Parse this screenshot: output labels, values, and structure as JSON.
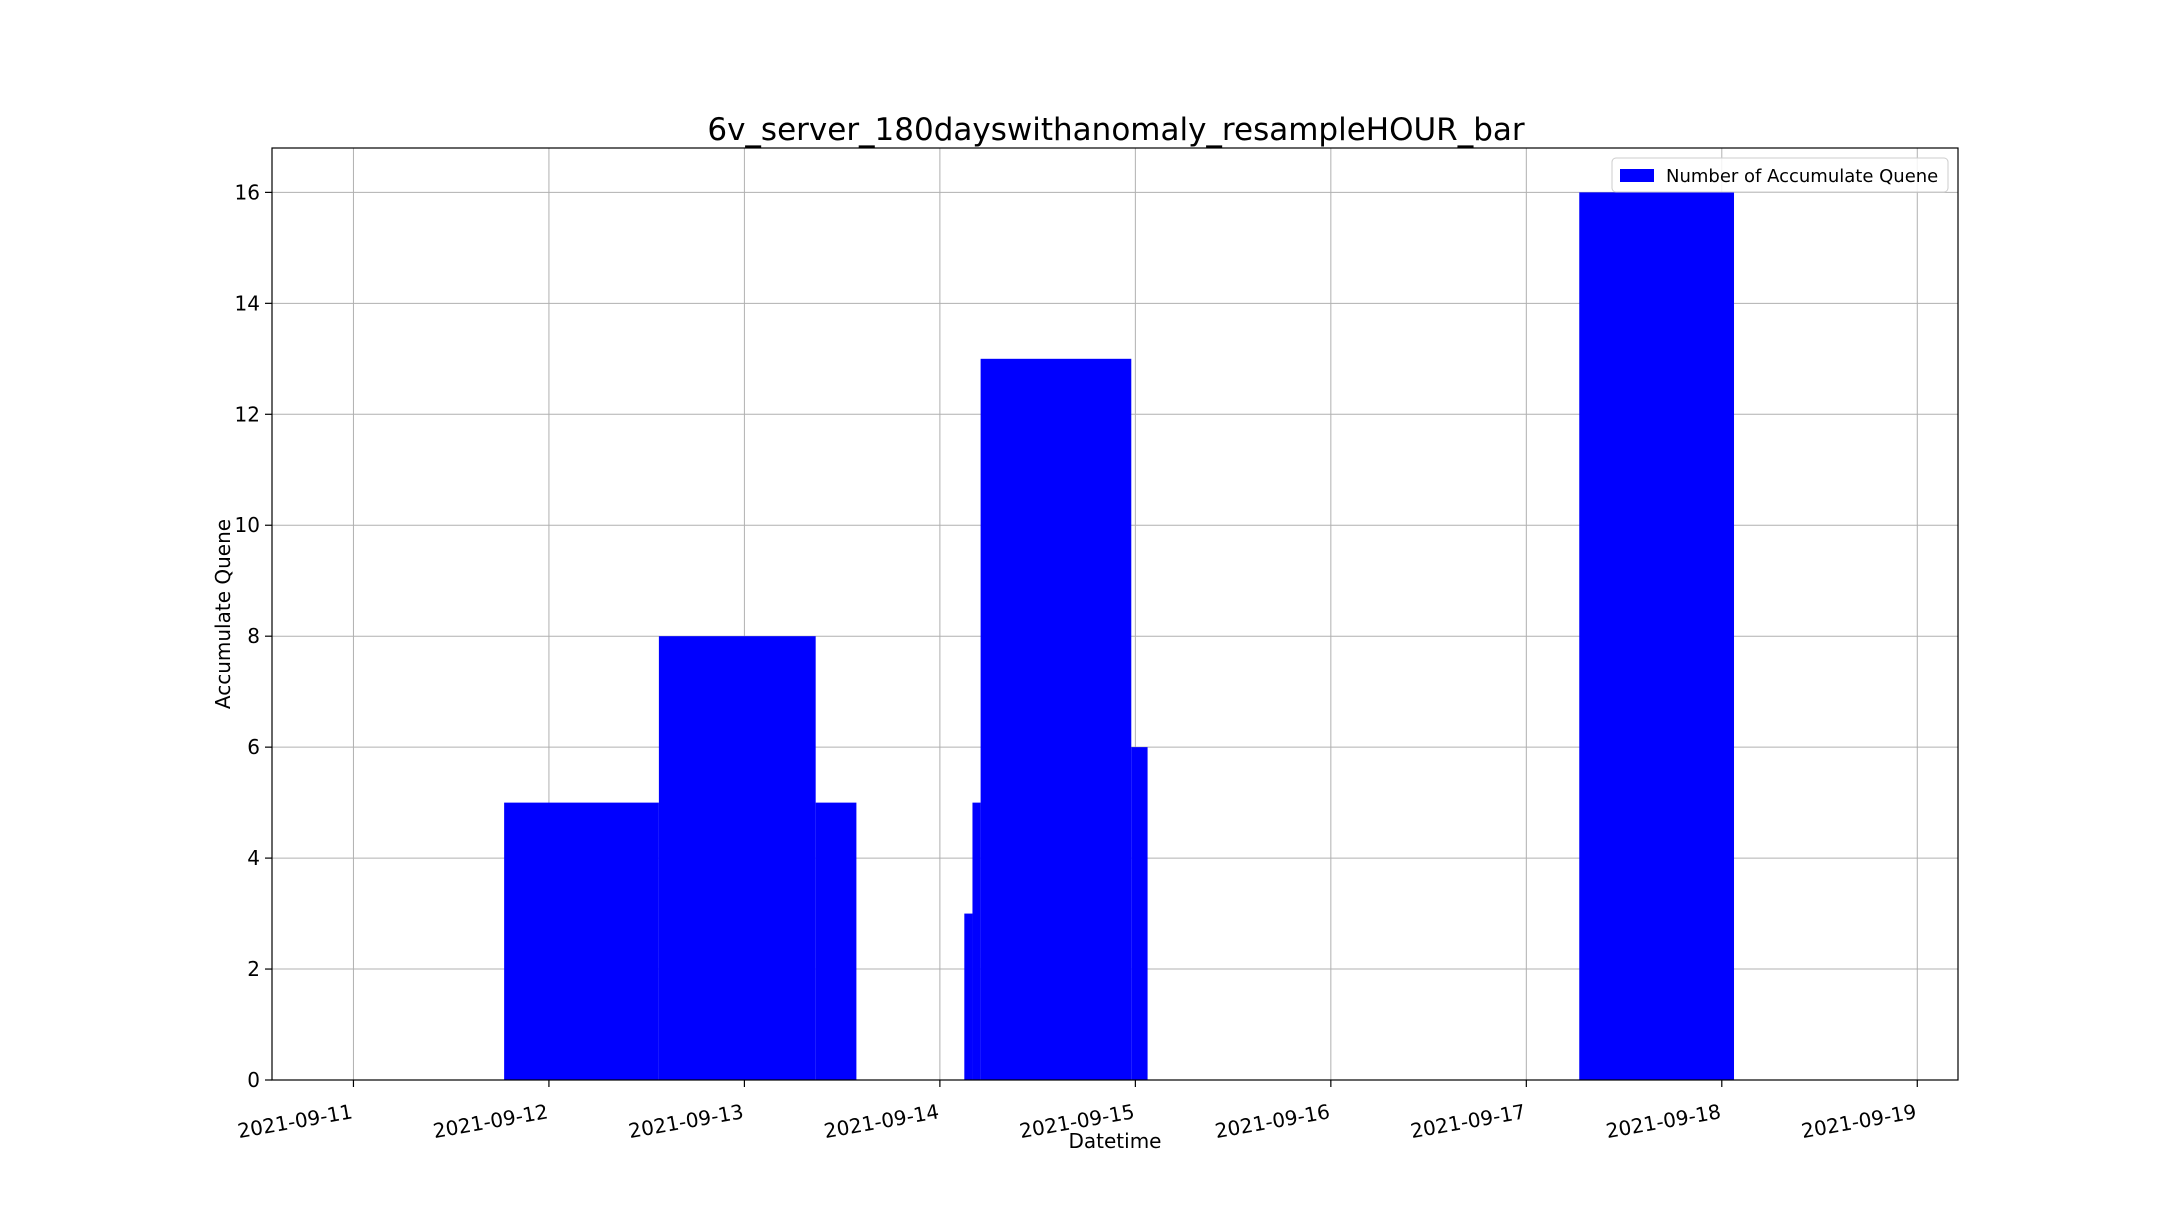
{
  "chart_data": {
    "type": "bar",
    "title": "6v_server_180dayswithanomaly_resampleHOUR_bar",
    "xlabel": "Datetime",
    "ylabel": "Accumulate Quene",
    "legend": {
      "label": "Number of Accumulate Quene",
      "placement": "upper-right"
    },
    "bar_color": "#0000ff",
    "grid": true,
    "xlim": [
      "2021-09-10 14:00",
      "2021-09-19 05:00"
    ],
    "ylim": [
      0,
      16.8
    ],
    "xticks": [
      "2021-09-11",
      "2021-09-12",
      "2021-09-13",
      "2021-09-14",
      "2021-09-15",
      "2021-09-16",
      "2021-09-17",
      "2021-09-18",
      "2021-09-19"
    ],
    "yticks": [
      0,
      2,
      4,
      6,
      8,
      10,
      12,
      14,
      16
    ],
    "bars": [
      {
        "start": "2021-09-11 18:30",
        "end": "2021-09-12 13:30",
        "value": 5
      },
      {
        "start": "2021-09-12 13:30",
        "end": "2021-09-13 08:45",
        "value": 8
      },
      {
        "start": "2021-09-13 08:45",
        "end": "2021-09-13 13:45",
        "value": 5
      },
      {
        "start": "2021-09-14 03:00",
        "end": "2021-09-14 04:00",
        "value": 3
      },
      {
        "start": "2021-09-14 04:00",
        "end": "2021-09-14 05:00",
        "value": 5
      },
      {
        "start": "2021-09-14 05:00",
        "end": "2021-09-14 23:30",
        "value": 13
      },
      {
        "start": "2021-09-14 23:30",
        "end": "2021-09-15 01:30",
        "value": 6
      },
      {
        "start": "2021-09-17 06:30",
        "end": "2021-09-18 01:30",
        "value": 16
      }
    ]
  }
}
